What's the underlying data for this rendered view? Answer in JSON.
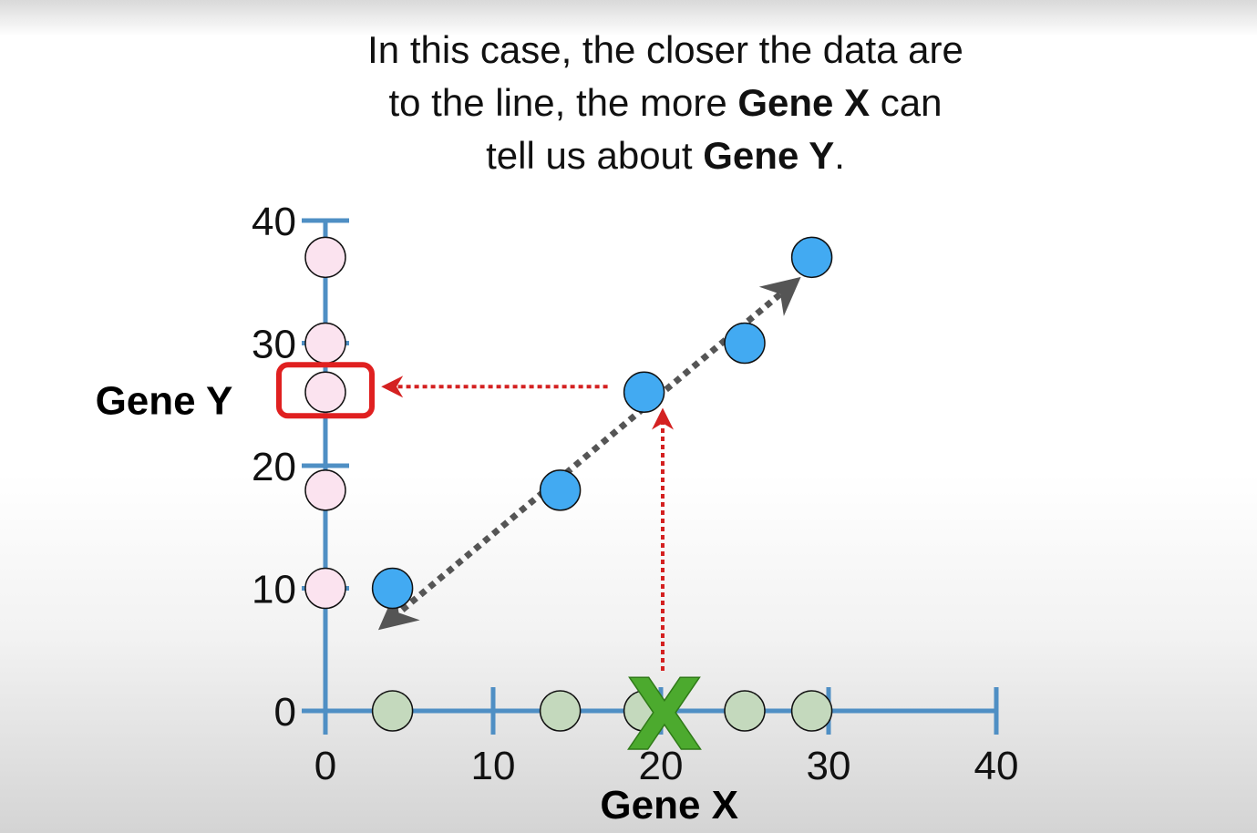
{
  "caption": {
    "line1": "In this case, the closer the data are",
    "line2_pre": "to the line, the more ",
    "line2_bold": "Gene X",
    "line2_post": " can",
    "line3_pre": "tell us about ",
    "line3_bold": "Gene Y",
    "line3_post": "."
  },
  "chart_data": {
    "type": "scatter",
    "xlabel": "Gene X",
    "ylabel": "Gene Y",
    "xlim": [
      0,
      40
    ],
    "ylim": [
      0,
      40
    ],
    "x_ticks": [
      "0",
      "10",
      "20",
      "30",
      "40"
    ],
    "y_ticks": [
      "0",
      "10",
      "20",
      "30",
      "40"
    ],
    "points": [
      {
        "x": 4,
        "y": 10
      },
      {
        "x": 14,
        "y": 18
      },
      {
        "x": 19,
        "y": 26
      },
      {
        "x": 25,
        "y": 30
      },
      {
        "x": 29,
        "y": 37
      }
    ],
    "x_marginal_points": [
      4,
      14,
      19,
      25,
      29
    ],
    "y_marginal_points": [
      10,
      18,
      26,
      30,
      37
    ],
    "trend_line": {
      "from": {
        "x": 3.5,
        "y": 7
      },
      "to": {
        "x": 28,
        "y": 35
      }
    },
    "predict_marker": {
      "x": 20,
      "label": "X"
    },
    "prediction": {
      "from_x": 20,
      "to_point": {
        "x": 19,
        "y": 26
      },
      "highlight_y": 26
    },
    "colors": {
      "axis": "#4f8fc4",
      "blue_point": "#42aaf2",
      "green_point": "#c4d9bd",
      "pink_point": "#fbe3ef",
      "trend_arrow": "#555555",
      "prediction_arrow": "#d42121",
      "highlight_box": "#e02020",
      "x_marker": "#4caa2e"
    }
  }
}
